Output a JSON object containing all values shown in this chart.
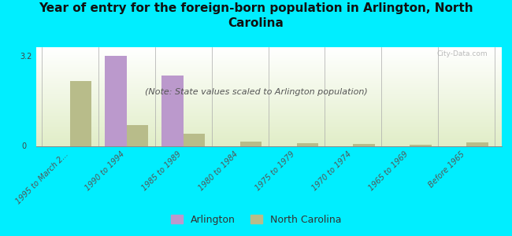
{
  "title": "Year of entry for the foreign-born population in Arlington, North\nCarolina",
  "subtitle": "(Note: State values scaled to Arlington population)",
  "categories": [
    "1995 to March 2...",
    "1990 to 1994",
    "1985 to 1989",
    "1980 to 1984",
    "1975 to 1979",
    "1970 to 1974",
    "1965 to 1969",
    "Before 1965"
  ],
  "arlington_values": [
    0.0,
    3.2,
    2.5,
    0.0,
    0.0,
    0.0,
    0.0,
    0.0
  ],
  "nc_values": [
    2.3,
    0.75,
    0.45,
    0.18,
    0.12,
    0.07,
    0.06,
    0.14
  ],
  "arlington_color": "#bb99cc",
  "nc_color": "#b8bc8a",
  "background_color": "#00eeff",
  "ylim": [
    0,
    3.5
  ],
  "yticks": [
    0,
    3.2
  ],
  "bar_width": 0.38,
  "watermark": "City-Data.com",
  "title_fontsize": 11,
  "subtitle_fontsize": 8,
  "tick_fontsize": 7,
  "legend_fontsize": 9
}
